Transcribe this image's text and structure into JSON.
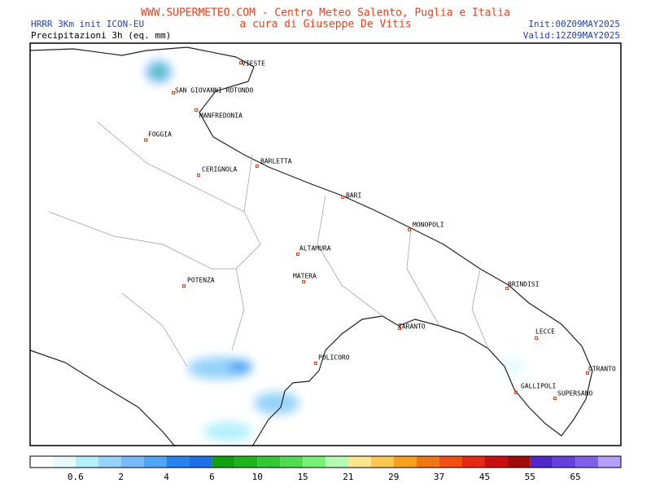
{
  "header": {
    "title": "WWW.SUPERMETEO.COM - Centro Meteo Salento, Puglia e Italia",
    "credit": "a cura di Giuseppe De Vitis",
    "model": "HRRR 3Km init ICON-EU",
    "field": "Precipitazioni 3h (eq. mm)",
    "init": "Init:00Z09MAY2025",
    "valid": "Valid:12Z09MAY2025"
  },
  "cities": [
    {
      "label": "VIESTE"
    },
    {
      "label": "SAN GIOVANNI ROTONDO"
    },
    {
      "label": "MANFREDONIA"
    },
    {
      "label": "FOGGIA"
    },
    {
      "label": "CERIGNOLA"
    },
    {
      "label": "BARLETTA"
    },
    {
      "label": "BARI"
    },
    {
      "label": "MONOPOLI"
    },
    {
      "label": "ALTAMURA"
    },
    {
      "label": "MATERA"
    },
    {
      "label": "POTENZA"
    },
    {
      "label": "BRINDISI"
    },
    {
      "label": "TARANTO"
    },
    {
      "label": "LECCE"
    },
    {
      "label": "POLICORO"
    },
    {
      "label": "OTRANTO"
    },
    {
      "label": "GALLIPOLI"
    },
    {
      "label": "SUPERSANO"
    }
  ],
  "colorbar": {
    "colors": [
      "#ffffff",
      "#e6fafd",
      "#b4f0fa",
      "#96d2fa",
      "#78b9fa",
      "#50a5f5",
      "#2882f0",
      "#1e6ee6",
      "#10a010",
      "#1eb41e",
      "#34c834",
      "#50dc50",
      "#78f078",
      "#b4fab4",
      "#fae68c",
      "#fac850",
      "#f5a01e",
      "#f07814",
      "#f05014",
      "#e62814",
      "#c80f0f",
      "#a00a0a",
      "#5028c8",
      "#6440dc",
      "#8060e6",
      "#b4a0fa"
    ],
    "labels": [
      "0.6",
      "2",
      "4",
      "6",
      "10",
      "15",
      "21",
      "29",
      "37",
      "45",
      "55",
      "65"
    ]
  }
}
